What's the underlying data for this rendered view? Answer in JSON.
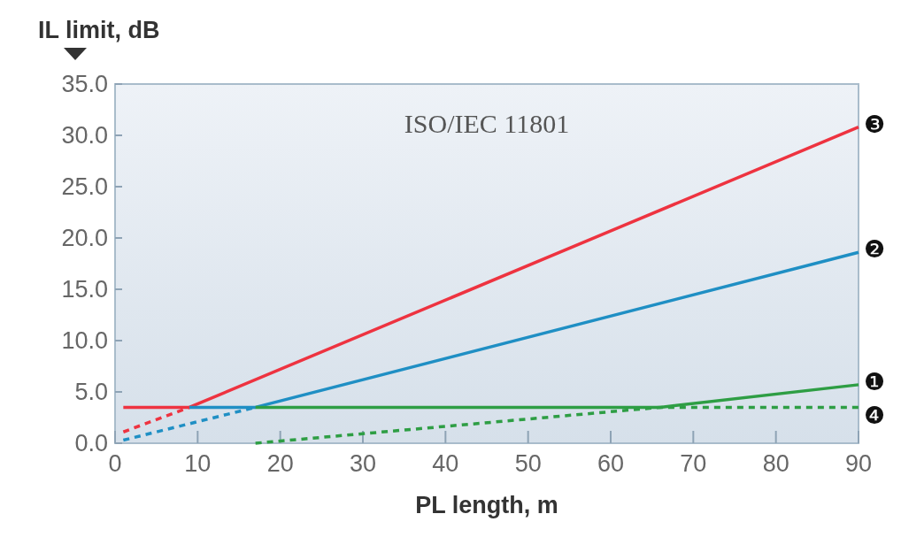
{
  "chart_data": {
    "type": "line",
    "xlabel": "PL length, m",
    "ylabel": "IL limit, dB",
    "xlim": [
      0,
      90
    ],
    "ylim": [
      0,
      35
    ],
    "xticks": [
      0,
      10,
      20,
      30,
      40,
      50,
      60,
      70,
      80,
      90
    ],
    "yticks": [
      {
        "value": 0,
        "label": "0.0"
      },
      {
        "value": 5,
        "label": "5.0"
      },
      {
        "value": 10,
        "label": "10.0"
      },
      {
        "value": 15,
        "label": "15.0"
      },
      {
        "value": 20,
        "label": "20.0"
      },
      {
        "value": 25,
        "label": "25.0"
      },
      {
        "value": 30,
        "label": "30.0"
      },
      {
        "value": 35,
        "label": "35.0"
      }
    ],
    "grid": false,
    "series": [
      {
        "name": "❸",
        "color": "#ee3340",
        "x": [
          1,
          9,
          90
        ],
        "values": [
          3.5,
          3.5,
          30.8
        ],
        "line_style": "solid"
      },
      {
        "color": "#ee3340",
        "x": [
          1,
          9
        ],
        "values": [
          1.1,
          3.5
        ],
        "line_style": "dashed"
      },
      {
        "name": "❷",
        "color": "#1f8fc4",
        "x": [
          9,
          17,
          90
        ],
        "values": [
          3.5,
          3.5,
          18.6
        ],
        "line_style": "solid"
      },
      {
        "color": "#1f8fc4",
        "x": [
          1,
          17
        ],
        "values": [
          0.3,
          3.5
        ],
        "line_style": "dashed"
      },
      {
        "name": "❶",
        "color": "#2e9e44",
        "x": [
          17,
          66,
          90
        ],
        "values": [
          3.5,
          3.5,
          5.7
        ],
        "line_style": "solid"
      },
      {
        "name": "❹",
        "color": "#2e9e44",
        "x": [
          17,
          66,
          90
        ],
        "values": [
          0,
          3.5,
          3.5
        ],
        "line_style": "dashed"
      }
    ],
    "annotations": [
      "ISO/IEC 11801"
    ]
  }
}
